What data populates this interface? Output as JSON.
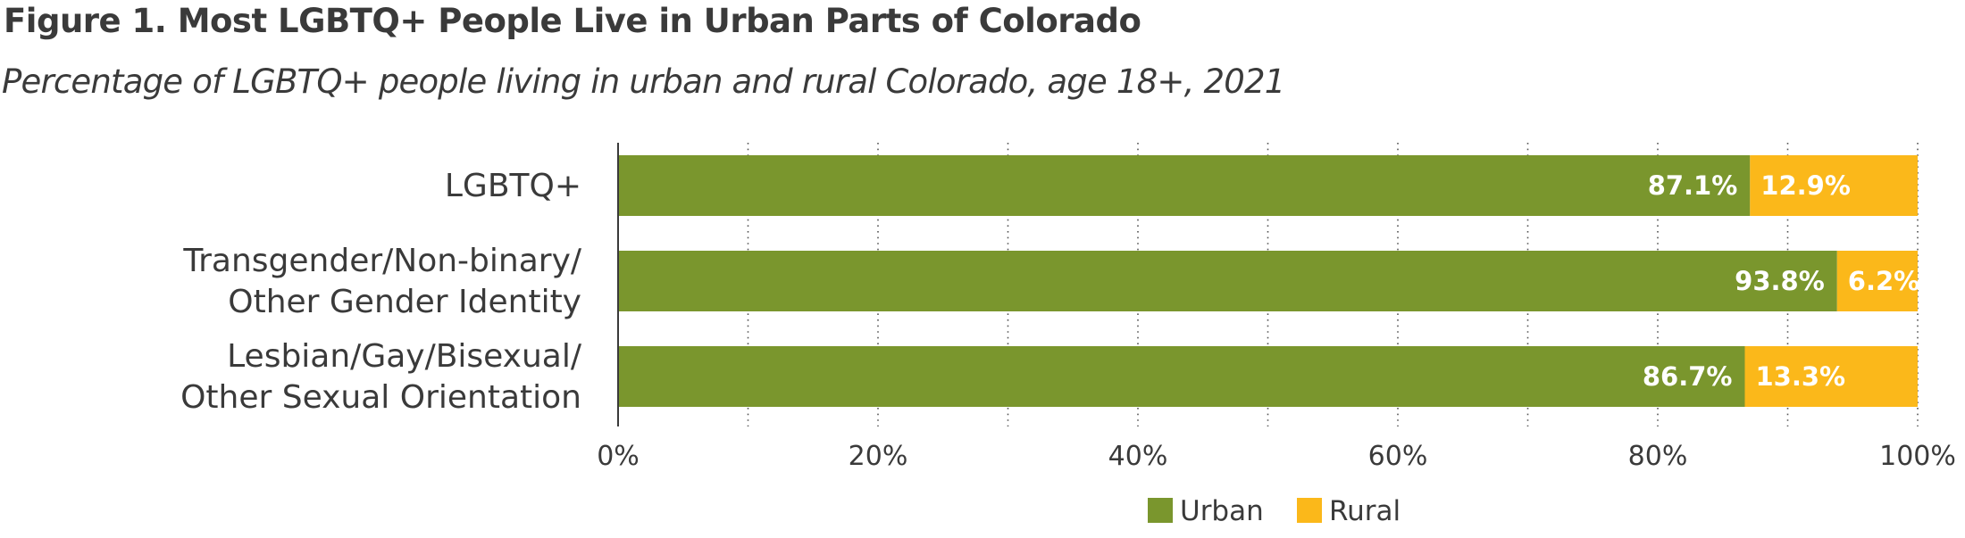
{
  "chart_data": {
    "type": "bar",
    "orientation": "horizontal",
    "stacked": true,
    "title": "Figure 1. Most LGBTQ+ People Live in Urban Parts of Colorado",
    "subtitle": "Percentage of LGBTQ+ people living in urban and rural Colorado, age 18+, 2021",
    "categories": [
      [
        "LGBTQ+"
      ],
      [
        "Transgender/Non-binary/",
        "Other Gender Identity"
      ],
      [
        "Lesbian/Gay/Bisexual/",
        "Other Sexual Orientation"
      ]
    ],
    "series": [
      {
        "name": "Urban",
        "color": "#7a962d",
        "values": [
          87.1,
          93.8,
          86.7
        ],
        "labels": [
          "87.1%",
          "93.8%",
          "86.7%"
        ]
      },
      {
        "name": "Rural",
        "color": "#fbb81a",
        "values": [
          12.9,
          6.2,
          13.3
        ],
        "labels": [
          "12.9%",
          "6.2%",
          "13.3%"
        ]
      }
    ],
    "xlim": [
      0,
      100
    ],
    "xticks": [
      "0%",
      "20%",
      "40%",
      "60%",
      "80%",
      "100%"
    ],
    "grid": "vertical-dotted",
    "legend_position": "bottom-center"
  }
}
